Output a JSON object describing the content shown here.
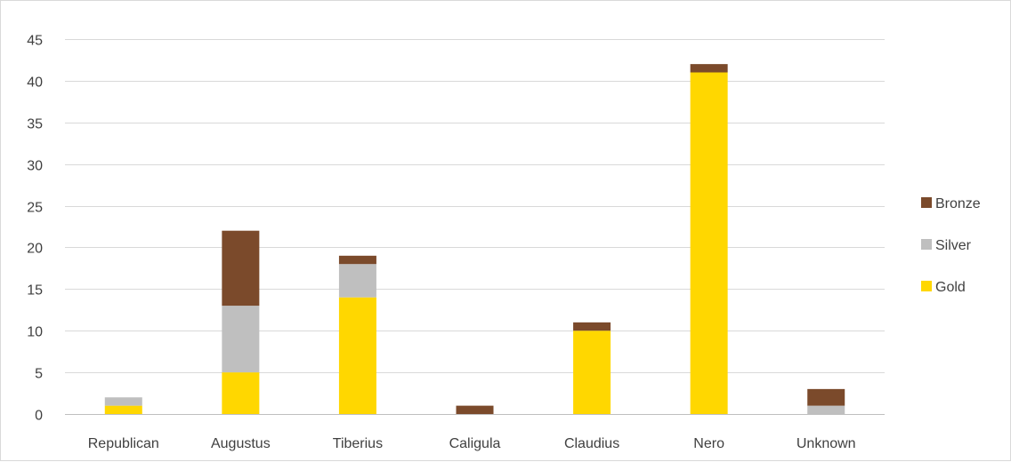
{
  "chart_data": {
    "type": "bar",
    "stacked": true,
    "categories": [
      "Republican",
      "Augustus",
      "Tiberius",
      "Caligula",
      "Claudius",
      "Nero",
      "Unknown"
    ],
    "series": [
      {
        "name": "Gold",
        "color": "#FFD700",
        "values": [
          1,
          5,
          14,
          0,
          10,
          41,
          0
        ]
      },
      {
        "name": "Silver",
        "color": "#BFBFBF",
        "values": [
          1,
          8,
          4,
          0,
          0,
          0,
          1
        ]
      },
      {
        "name": "Bronze",
        "color": "#7B4A2B",
        "values": [
          0,
          9,
          1,
          1,
          1,
          1,
          2
        ]
      }
    ],
    "ylim": [
      0,
      45
    ],
    "yticks": [
      0,
      5,
      10,
      15,
      20,
      25,
      30,
      35,
      40,
      45
    ],
    "grid": true,
    "legend_position": "right",
    "legend_order": [
      "Bronze",
      "Silver",
      "Gold"
    ],
    "title": "",
    "xlabel": "",
    "ylabel": ""
  }
}
